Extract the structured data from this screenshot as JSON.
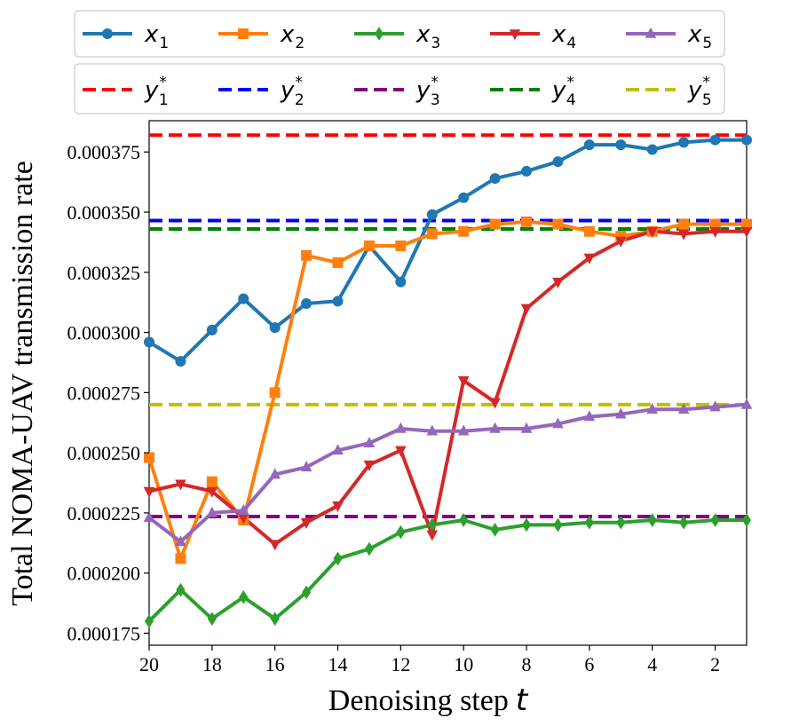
{
  "chart_data": {
    "type": "line",
    "xlabel": "Denoising step",
    "xlabel_var": "t",
    "ylabel": "Total NOMA-UAV transmission rate",
    "xlim": [
      20,
      1
    ],
    "ylim": [
      0.00017,
      0.000388
    ],
    "x": [
      20,
      19,
      18,
      17,
      16,
      15,
      14,
      13,
      12,
      11,
      10,
      9,
      8,
      7,
      6,
      5,
      4,
      3,
      2,
      1
    ],
    "x_ticks": [
      20,
      18,
      16,
      14,
      12,
      10,
      8,
      6,
      4,
      2
    ],
    "y_ticks": [
      0.000175,
      0.0002,
      0.000225,
      0.00025,
      0.000275,
      0.0003,
      0.000325,
      0.00035,
      0.000375
    ],
    "y_tick_labels": [
      "0.000175",
      "0.000200",
      "0.000225",
      "0.000250",
      "0.000275",
      "0.000300",
      "0.000325",
      "0.000350",
      "0.000375"
    ],
    "series": [
      {
        "name": "x",
        "sub": "1",
        "color": "#1f77b4",
        "marker": "circle",
        "values": [
          0.000296,
          0.000288,
          0.000301,
          0.000314,
          0.000302,
          0.000312,
          0.000313,
          0.000336,
          0.000321,
          0.000349,
          0.000356,
          0.000364,
          0.000367,
          0.000371,
          0.000378,
          0.000378,
          0.000376,
          0.000379,
          0.00038,
          0.00038
        ]
      },
      {
        "name": "x",
        "sub": "2",
        "color": "#ff7f0e",
        "marker": "square",
        "values": [
          0.000248,
          0.000206,
          0.000238,
          0.000222,
          0.000275,
          0.000332,
          0.000329,
          0.000336,
          0.000336,
          0.000341,
          0.000342,
          0.000345,
          0.000346,
          0.000345,
          0.000342,
          0.00034,
          0.000342,
          0.000345,
          0.000345,
          0.000345
        ]
      },
      {
        "name": "x",
        "sub": "3",
        "color": "#2ca02c",
        "marker": "diamond",
        "values": [
          0.00018,
          0.000193,
          0.000181,
          0.00019,
          0.000181,
          0.000192,
          0.000206,
          0.00021,
          0.000217,
          0.00022,
          0.000222,
          0.000218,
          0.00022,
          0.00022,
          0.000221,
          0.000221,
          0.000222,
          0.000221,
          0.000222,
          0.000222
        ]
      },
      {
        "name": "x",
        "sub": "4",
        "color": "#d62728",
        "marker": "triangle-down",
        "values": [
          0.000234,
          0.000237,
          0.000234,
          0.000223,
          0.000212,
          0.000221,
          0.000228,
          0.000245,
          0.000251,
          0.000216,
          0.00028,
          0.000271,
          0.00031,
          0.000321,
          0.000331,
          0.000338,
          0.000342,
          0.000341,
          0.000342,
          0.000342
        ]
      },
      {
        "name": "x",
        "sub": "5",
        "color": "#9467bd",
        "marker": "triangle-up",
        "values": [
          0.000223,
          0.000213,
          0.000225,
          0.000226,
          0.000241,
          0.000244,
          0.000251,
          0.000254,
          0.00026,
          0.000259,
          0.000259,
          0.00026,
          0.00026,
          0.000262,
          0.000265,
          0.000266,
          0.000268,
          0.000268,
          0.000269,
          0.00027
        ]
      }
    ],
    "reference_lines": [
      {
        "name": "y",
        "sub": "1",
        "color": "#ff0000",
        "value": 0.000382
      },
      {
        "name": "y",
        "sub": "2",
        "color": "#0000ff",
        "value": 0.0003465
      },
      {
        "name": "y",
        "sub": "3",
        "color": "#800080",
        "value": 0.0002235
      },
      {
        "name": "y",
        "sub": "4",
        "color": "#008000",
        "value": 0.000343
      },
      {
        "name": "y",
        "sub": "5",
        "color": "#bfbf00",
        "value": 0.00027
      }
    ],
    "legend_position": "top (two rows above plot)",
    "grid": false
  }
}
